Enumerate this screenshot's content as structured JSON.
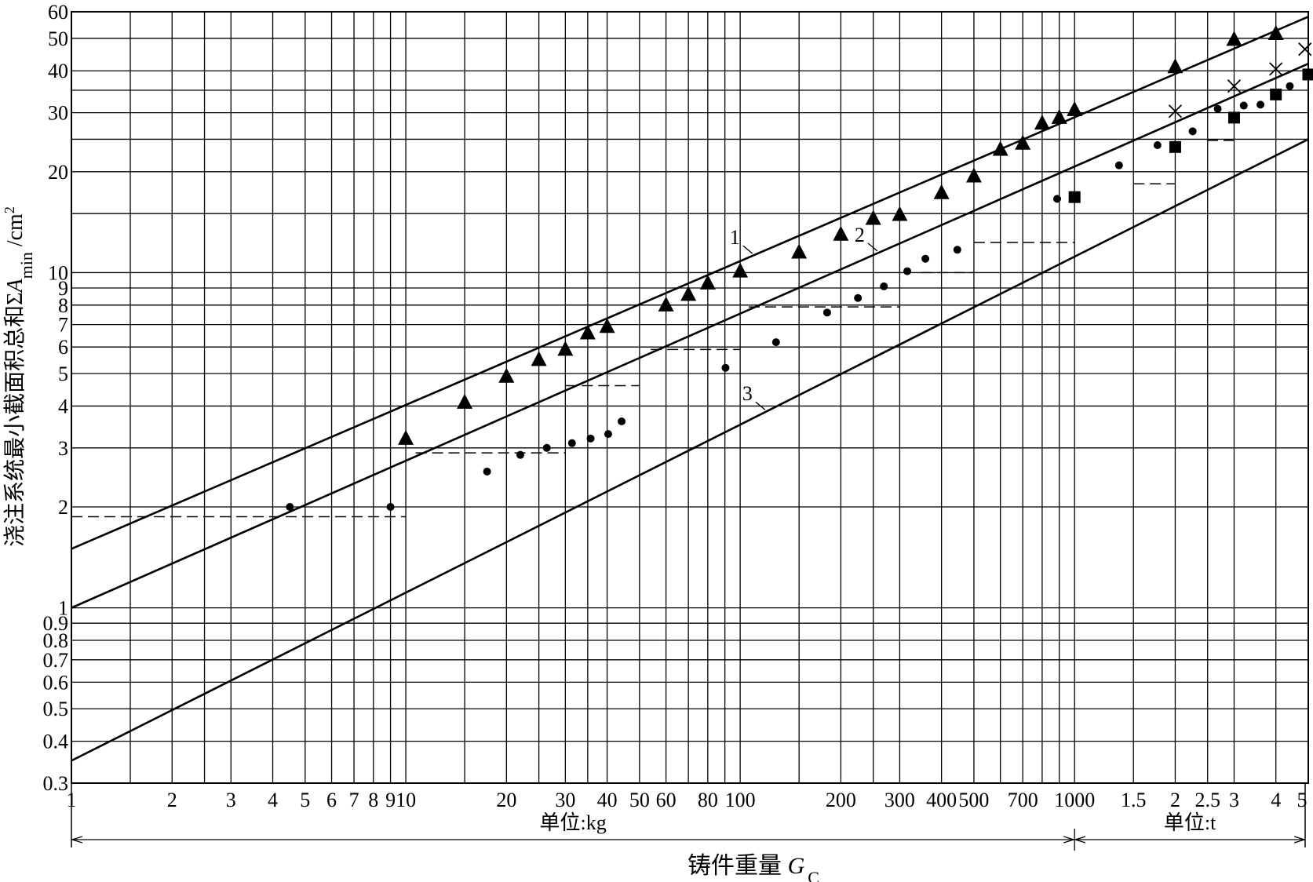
{
  "chart_data": {
    "type": "scatter",
    "x_label": {
      "text": "铸件重量 ",
      "symbol": "G",
      "subscript": "C"
    },
    "y_label": {
      "text": "浇注系统最小截面积总和Σ",
      "symbol": "A",
      "subscript": "min",
      "unit": " /cm",
      "superscript": "2"
    },
    "xscale": "log",
    "yscale": "log",
    "grid": true,
    "xlim": [
      1,
      5000
    ],
    "ylim": [
      0.3,
      60
    ],
    "xticks": [
      1,
      2,
      3,
      4,
      5,
      6,
      7,
      8,
      9,
      10,
      20,
      30,
      40,
      50,
      60,
      80,
      100,
      200,
      300,
      400,
      500,
      700,
      1000,
      {
        "value": 1500,
        "label": "1.5"
      },
      {
        "value": 2000,
        "label": "2"
      },
      {
        "value": 2500,
        "label": "2.5"
      },
      {
        "value": 3000,
        "label": "3"
      },
      {
        "value": 4000,
        "label": "4"
      },
      {
        "value": 5000,
        "label": "5"
      }
    ],
    "xminor": [
      1.5,
      2.5,
      15,
      25,
      35,
      70,
      90,
      150,
      250,
      600,
      800,
      900
    ],
    "yticks": [
      0.3,
      0.4,
      0.5,
      0.6,
      0.7,
      0.8,
      0.9,
      1,
      2,
      3,
      4,
      5,
      6,
      7,
      8,
      9,
      10,
      20,
      30,
      40,
      50,
      60
    ],
    "yminor": [
      15,
      25,
      35
    ],
    "units": [
      {
        "label": "单位:kg",
        "from": 1,
        "to": 1000
      },
      {
        "label": "单位:t",
        "from": 1000,
        "to": 5000
      }
    ],
    "lines": [
      {
        "label": "1",
        "x": [
          1,
          5000
        ],
        "values": [
          1.5,
          58
        ]
      },
      {
        "label": "2",
        "x": [
          1,
          5000
        ],
        "values": [
          1,
          42
        ]
      },
      {
        "label": "3",
        "x": [
          1,
          5000
        ],
        "values": [
          0.35,
          25
        ]
      }
    ],
    "series": [
      {
        "marker": "triangle",
        "color": "#000000",
        "x": [
          10,
          15,
          20,
          25,
          30,
          35,
          40,
          60,
          70,
          80,
          100,
          150,
          200,
          250,
          300,
          400,
          500,
          600,
          700,
          800,
          900,
          1000,
          2000,
          3000,
          4000
        ],
        "values": [
          3.2,
          4.1,
          4.9,
          5.5,
          5.9,
          6.6,
          6.9,
          8.0,
          8.6,
          9.3,
          10.1,
          11.5,
          13.0,
          14.5,
          14.9,
          17.3,
          19.4,
          23.3,
          24.3,
          27.9,
          29.0,
          30.6,
          41.1,
          49.6,
          51.6
        ]
      },
      {
        "marker": "circle",
        "color": "#000000",
        "x": [
          4.5,
          9,
          17.5,
          22,
          26.4,
          31.4,
          35.7,
          40.3,
          44.2,
          90.4,
          128,
          182,
          225,
          269,
          316,
          358,
          446,
          887,
          1358,
          1770,
          2255,
          2680,
          3206,
          3597,
          4402
        ],
        "values": [
          2.0,
          2.0,
          2.55,
          2.86,
          3.0,
          3.1,
          3.2,
          3.3,
          3.6,
          5.2,
          6.2,
          7.6,
          8.4,
          9.1,
          10.1,
          11.0,
          11.7,
          16.6,
          20.9,
          24.0,
          26.4,
          30.8,
          31.5,
          31.7,
          36.0
        ]
      },
      {
        "marker": "square",
        "color": "#000000",
        "x": [
          1000,
          2000,
          3000,
          4000,
          5000
        ],
        "values": [
          16.8,
          23.7,
          29.0,
          34.0,
          39.0
        ]
      },
      {
        "marker": "cross",
        "color": "#000000",
        "x": [
          2000,
          3000,
          4000,
          4886
        ],
        "values": [
          30.3,
          36.0,
          40.5,
          46.4
        ]
      }
    ],
    "dashed_levels": {
      "x_start": [
        1,
        10.7,
        30,
        54,
        106,
        347,
        500,
        1500,
        2490
      ],
      "x_end": [
        10,
        30,
        50,
        100,
        300,
        500,
        1000,
        2000,
        3000
      ],
      "values": [
        1.87,
        2.9,
        4.6,
        5.9,
        7.9,
        10,
        12.3,
        18.4,
        24.8
      ]
    }
  }
}
